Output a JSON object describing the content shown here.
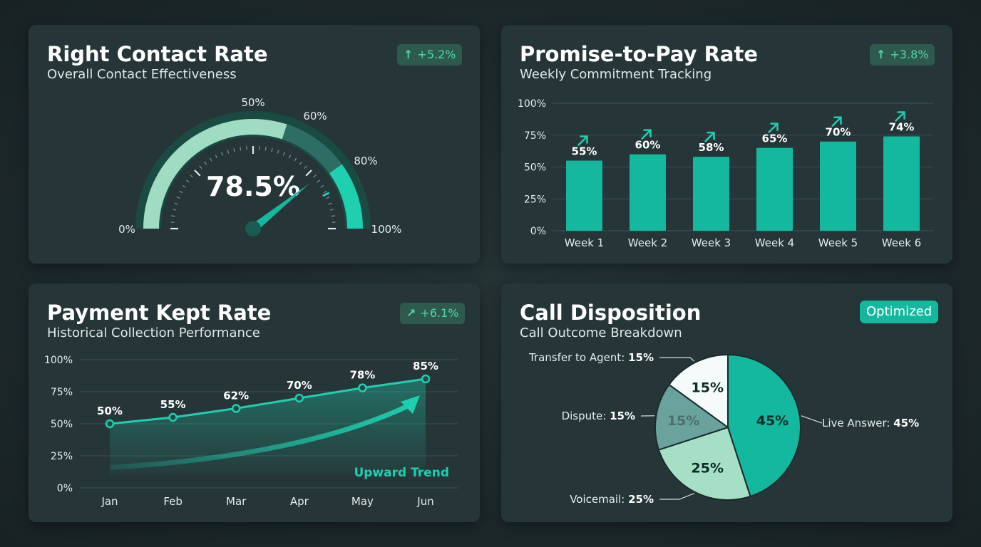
{
  "colors": {
    "accent": "#13b89f",
    "accent_bright": "#1ecfb0",
    "gauge_light": "#9fdcc2",
    "gauge_mid": "#2e6d63",
    "pie_live": "#13b89f",
    "pie_voicemail": "#a6dfc6",
    "pie_dispute": "#6aa39d",
    "pie_transfer": "#f4fbfa",
    "badge_text": "#4fd6a9"
  },
  "gauge": {
    "title": "Right Contact Rate",
    "subtitle": "Overall Contact Effectiveness",
    "badge": {
      "icon": "arrow-up-icon",
      "arrow": "↑",
      "text": "+5.2%"
    },
    "value_label": "78.5%",
    "labels": {
      "min": "0%",
      "p50": "50%",
      "p60": "60%",
      "p80": "80%",
      "max": "100%"
    }
  },
  "bar": {
    "title": "Promise-to-Pay Rate",
    "subtitle": "Weekly Commitment Tracking",
    "badge": {
      "icon": "arrow-up-icon",
      "arrow": "↑",
      "text": "+3.8%"
    }
  },
  "line": {
    "title": "Payment Kept Rate",
    "subtitle": "Historical Collection Performance",
    "badge": {
      "icon": "trend-up-icon",
      "arrow": "↗",
      "text": "+6.1%"
    },
    "trend_label": "Upward Trend"
  },
  "pie": {
    "title": "Call Disposition",
    "subtitle": "Call Outcome Breakdown",
    "badge": {
      "text": "Optimized"
    }
  },
  "chart_data": [
    {
      "type": "gauge",
      "title": "Right Contact Rate",
      "value": 78.5,
      "min": 0,
      "max": 100,
      "bands": [
        {
          "from": 0,
          "to": 50
        },
        {
          "from": 50,
          "to": 60
        },
        {
          "from": 60,
          "to": 80
        },
        {
          "from": 80,
          "to": 100
        }
      ]
    },
    {
      "type": "bar",
      "title": "Promise-to-Pay Rate",
      "categories": [
        "Week 1",
        "Week 2",
        "Week 3",
        "Week 4",
        "Week 5",
        "Week 6"
      ],
      "values": [
        55,
        60,
        58,
        65,
        70,
        74
      ],
      "value_labels": [
        "55%",
        "60%",
        "58%",
        "65%",
        "70%",
        "74%"
      ],
      "yticks": [
        "0%",
        "25%",
        "50%",
        "75%",
        "100%"
      ],
      "ylim": [
        0,
        100
      ]
    },
    {
      "type": "line",
      "title": "Payment Kept Rate",
      "categories": [
        "Jan",
        "Feb",
        "Mar",
        "Apr",
        "May",
        "Jun"
      ],
      "values": [
        50,
        55,
        62,
        70,
        78,
        85
      ],
      "value_labels": [
        "50%",
        "55%",
        "62%",
        "70%",
        "78%",
        "85%"
      ],
      "yticks": [
        "0%",
        "25%",
        "50%",
        "75%",
        "100%"
      ],
      "ylim": [
        0,
        100
      ]
    },
    {
      "type": "pie",
      "title": "Call Disposition",
      "slices": [
        {
          "label": "Live Answer",
          "value": 45,
          "pct": "45%",
          "legend": "Live Answer: ",
          "legend_value": "45%"
        },
        {
          "label": "Voicemail",
          "value": 25,
          "pct": "25%",
          "legend": "Voicemail: ",
          "legend_value": "25%"
        },
        {
          "label": "Dispute",
          "value": 15,
          "pct": "15%",
          "legend": "Dispute: ",
          "legend_value": "15%"
        },
        {
          "label": "Transfer to Agent",
          "value": 15,
          "pct": "15%",
          "legend": "Transfer to Agent: ",
          "legend_value": "15%"
        }
      ]
    }
  ]
}
